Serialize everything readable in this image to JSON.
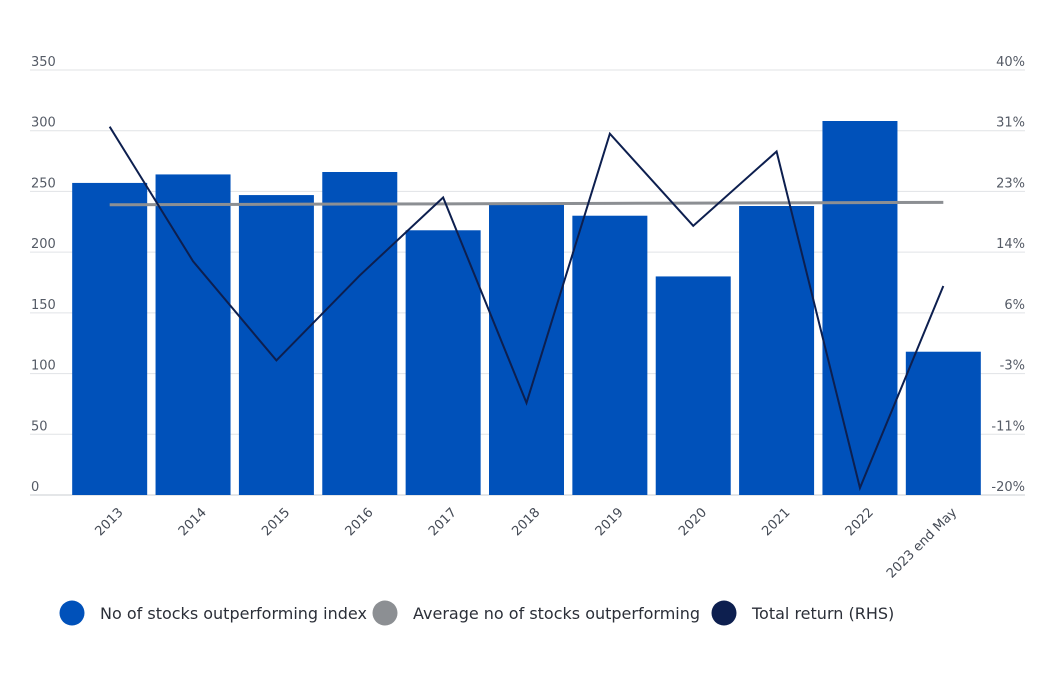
{
  "chart_data": {
    "type": "bar",
    "categories": [
      "2013",
      "2014",
      "2015",
      "2016",
      "2017",
      "2018",
      "2019",
      "2020",
      "2021",
      "2022",
      "2023 end May"
    ],
    "series": [
      {
        "name": "No of stocks outperforming index",
        "type": "bar",
        "axis": "left",
        "color": "#0051ba",
        "values": [
          257,
          264,
          247,
          266,
          218,
          240,
          230,
          180,
          238,
          308,
          118
        ]
      },
      {
        "name": "Average no of stocks outperforming",
        "type": "line",
        "axis": "left",
        "color": "#8c8f93",
        "values": [
          239,
          239.2,
          239.4,
          239.6,
          239.8,
          240,
          240.2,
          240.4,
          240.6,
          240.8,
          241
        ]
      },
      {
        "name": "Total return (RHS)",
        "type": "line",
        "axis": "right",
        "color": "#0d1f4f",
        "values": [
          32,
          13,
          -1,
          11,
          22,
          -7,
          31,
          18,
          28.5,
          -19,
          9.5
        ]
      }
    ],
    "left_axis": {
      "ylim": [
        0,
        350
      ],
      "ticks": [
        0,
        50,
        100,
        150,
        200,
        250,
        300,
        350
      ],
      "tick_labels": [
        "0",
        "50",
        "100",
        "150",
        "200",
        "250",
        "300",
        "350"
      ]
    },
    "right_axis": {
      "ylim": [
        -20,
        40
      ],
      "tick_labels": [
        "-20%",
        "-11%",
        "-3%",
        "6%",
        "14%",
        "23%",
        "31%",
        "40%"
      ]
    },
    "grid": true,
    "legend_position": "bottom-left",
    "legend": [
      {
        "label": "No of stocks outperforming index",
        "color": "#0051ba"
      },
      {
        "label": "Average no of stocks outperforming",
        "color": "#8c8f93"
      },
      {
        "label": "Total return (RHS)",
        "color": "#0d1f4f"
      }
    ]
  }
}
